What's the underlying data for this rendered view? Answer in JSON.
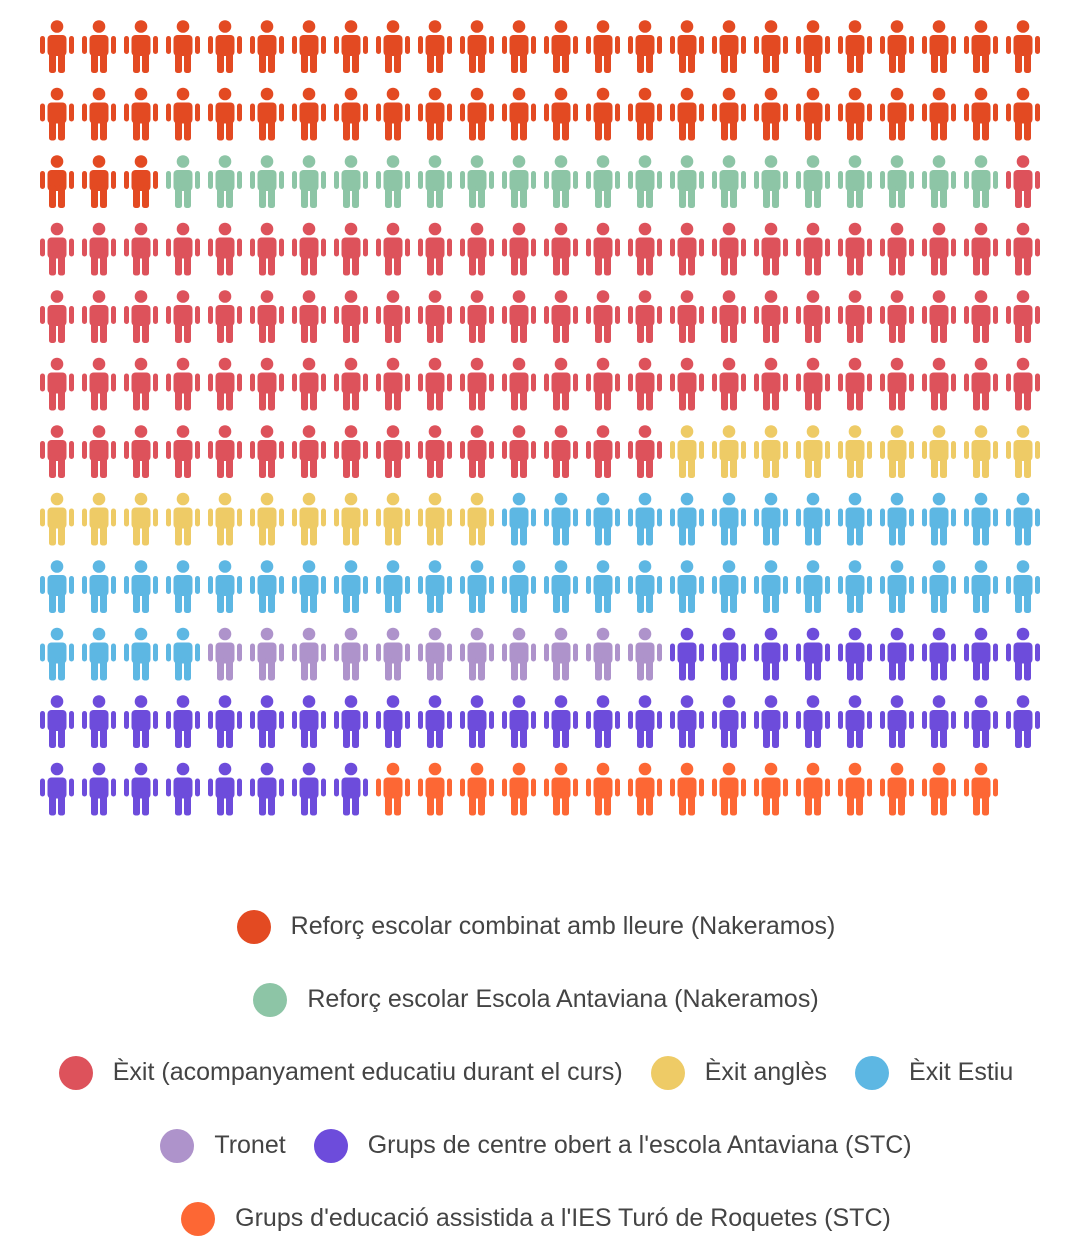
{
  "chart_data": {
    "type": "pictogram",
    "icon": "person-icon",
    "columns": 24,
    "series": [
      {
        "name": "Reforç escolar combinat amb lleure (Nakeramos)",
        "value": 51,
        "color": "#E34A22"
      },
      {
        "name": "Reforç escolar Escola Antaviana (Nakeramos)",
        "value": 20,
        "color": "#8DC5A6"
      },
      {
        "name": "Èxit (acompanyament educatiu durant el curs)",
        "value": 88,
        "color": "#DD525B"
      },
      {
        "name": "Èxit anglès",
        "value": 20,
        "color": "#EECB66"
      },
      {
        "name": "Èxit Estiu",
        "value": 41,
        "color": "#5DB7E3"
      },
      {
        "name": "Tronet",
        "value": 11,
        "color": "#AE93CB"
      },
      {
        "name": "Grups de centre obert a l'escola Antaviana (STC)",
        "value": 41,
        "color": "#6D4CDB"
      },
      {
        "name": "Grups d'educació assistida a l'IES Turó de Roquetes (STC)",
        "value": 15,
        "color": "#FD6734"
      }
    ]
  },
  "legend_rows": [
    [
      0
    ],
    [
      1
    ],
    [
      2,
      3,
      4
    ],
    [
      5,
      6
    ],
    [
      7
    ]
  ]
}
